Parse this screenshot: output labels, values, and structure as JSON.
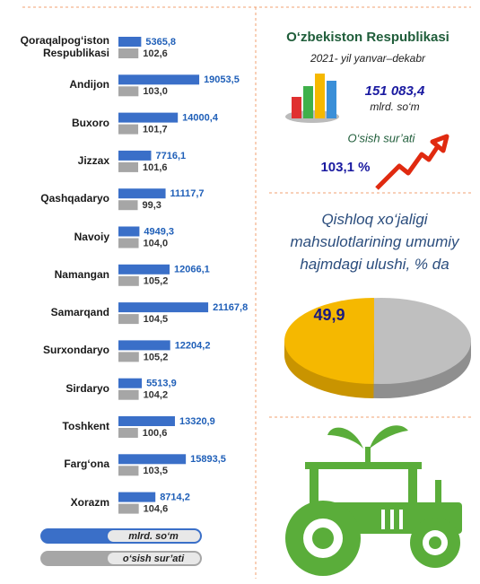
{
  "chart_data": [
    {
      "type": "bar",
      "orientation": "horizontal",
      "categories": [
        "Qoraqalpog‘iston Respublikasi",
        "Andijon",
        "Buxoro",
        "Jizzax",
        "Qashqadaryo",
        "Navoiy",
        "Namangan",
        "Samarqand",
        "Surxondaryo",
        "Sirdaryo",
        "Toshkent",
        "Farg‘ona",
        "Xorazm"
      ],
      "series": [
        {
          "name": "mlrd. so‘m",
          "color": "#3a6fc8",
          "values": [
            5365.8,
            19053.5,
            14000.4,
            7716.1,
            11117.7,
            4949.3,
            12066.1,
            21167.8,
            12204.2,
            5513.9,
            13320.9,
            15893.5,
            8714.2
          ],
          "value_labels": [
            "5365,8",
            "19053,5",
            "14000,4",
            "7716,1",
            "11117,7",
            "4949,3",
            "12066,1",
            "21167,8",
            "12204,2",
            "5513,9",
            "13320,9",
            "15893,5",
            "8714,2"
          ]
        },
        {
          "name": "o‘sish sur’ati",
          "color": "#a6a6a6",
          "axis": "x2",
          "values": [
            102.6,
            103.0,
            101.7,
            101.6,
            99.3,
            104.0,
            105.2,
            104.5,
            105.2,
            104.2,
            100.6,
            103.5,
            104.6
          ],
          "value_labels": [
            "102,6",
            "103,0",
            "101,7",
            "101,6",
            "99,3",
            "104,0",
            "105,2",
            "104,5",
            "105,2",
            "104,2",
            "100,6",
            "103,5",
            "104,6"
          ]
        }
      ],
      "xlim": [
        0,
        22000
      ],
      "x2lim": [
        0,
        480
      ]
    },
    {
      "type": "pie",
      "title": "Qishloq xo‘jaligi mahsulotlarining umumiy hajmdagi ulushi, % da",
      "values": [
        49.9
      ],
      "value_labels": [
        "49,9"
      ],
      "colors": [
        "#f5b800"
      ],
      "rest_color": "#bfbfbf"
    }
  ],
  "summary": {
    "title": "O‘zbekiston Respublikasi",
    "period": "2021- yil yanvar–dekabr",
    "total": "151 083,4",
    "unit": "mlrd. so‘m",
    "growth_label": "O‘sish sur’ati",
    "growth": "103,1 %"
  }
}
